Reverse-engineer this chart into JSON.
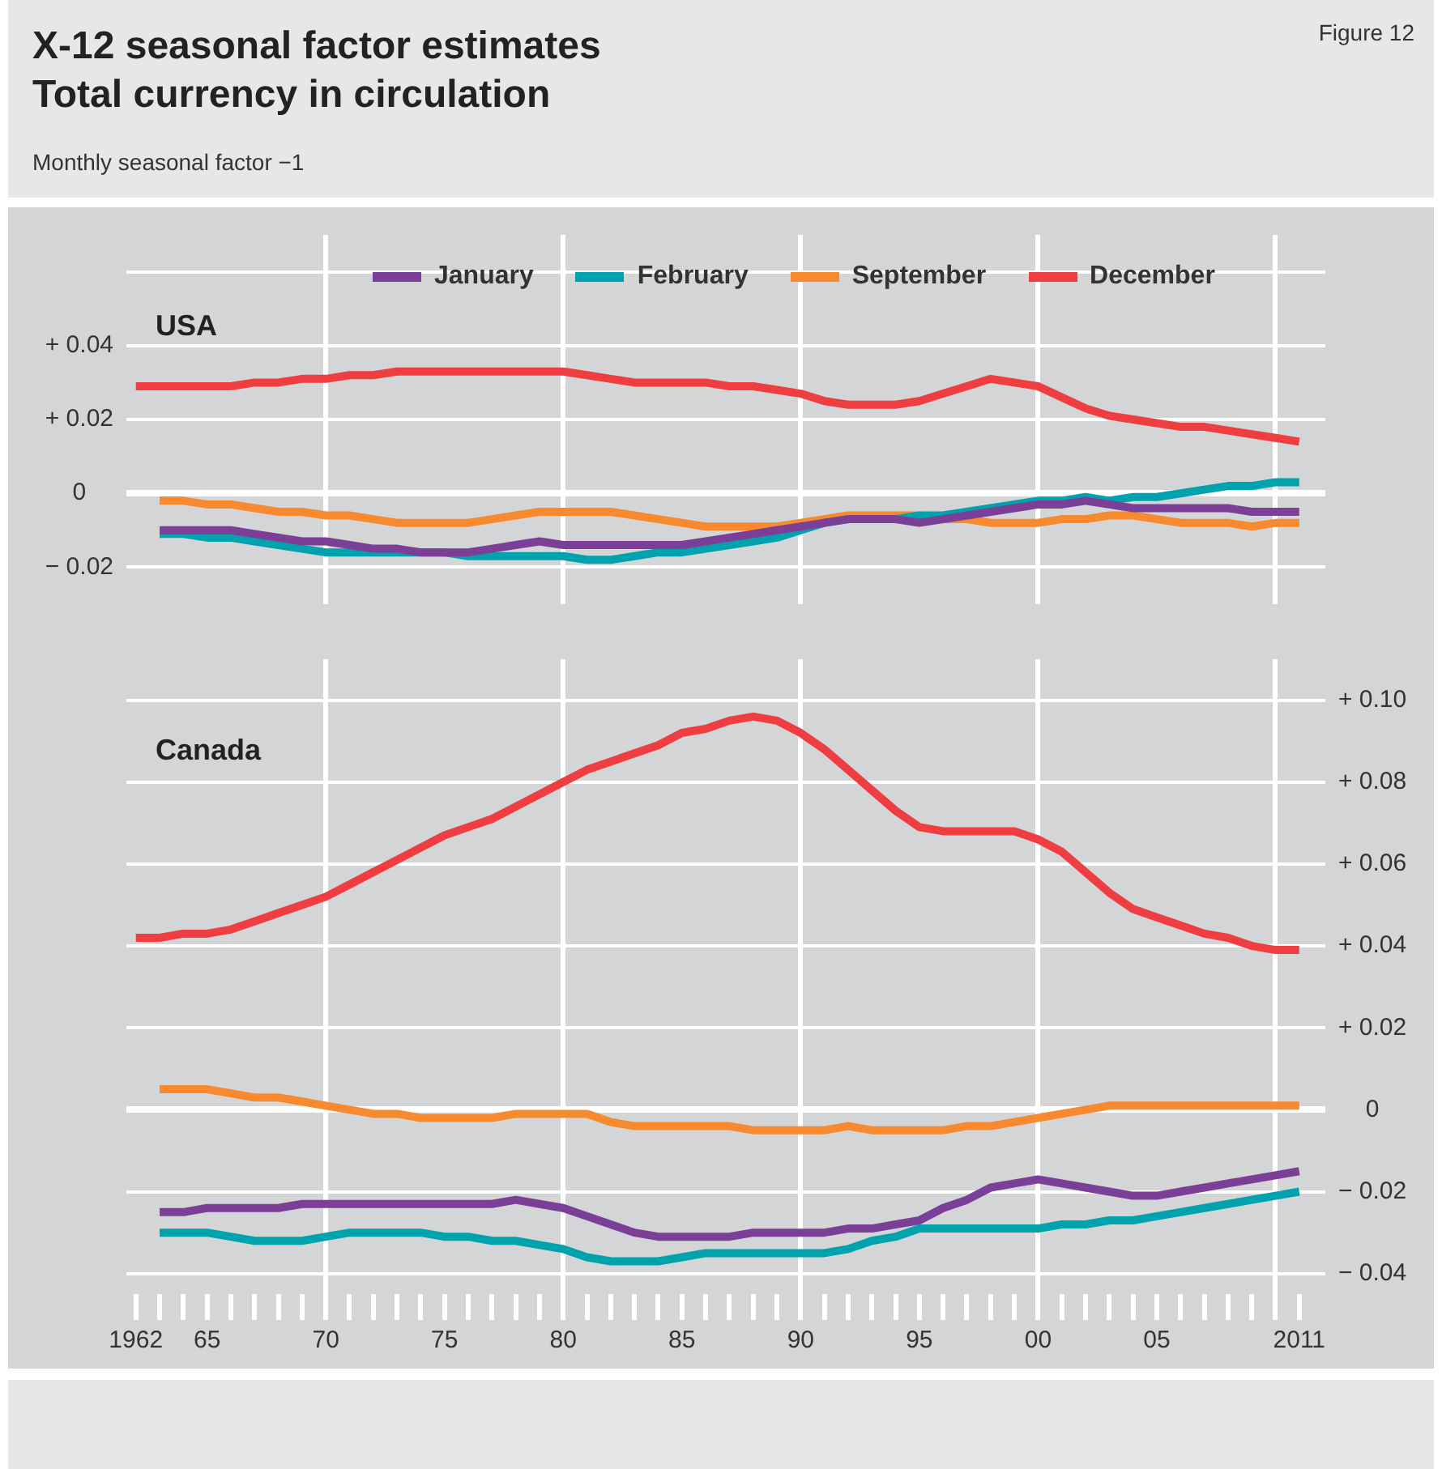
{
  "chart_data": [
    {
      "type": "other",
      "title": "X-12 seasonal factor estimates",
      "subtitle": "Total currency in circulation",
      "annotations": [
        "Monthly seasonal factor −1",
        "Figure 12"
      ]
    },
    {
      "type": "line",
      "title": "USA",
      "legend": "top",
      "marker": "none",
      "line_style": "solid",
      "grid": true,
      "tick_labels": "y",
      "x": [
        1962,
        1963,
        1964,
        1965,
        1966,
        1967,
        1968,
        1969,
        1970,
        1971,
        1972,
        1973,
        1974,
        1975,
        1976,
        1977,
        1978,
        1979,
        1980,
        1981,
        1982,
        1983,
        1984,
        1985,
        1986,
        1987,
        1988,
        1989,
        1990,
        1991,
        1992,
        1993,
        1994,
        1995,
        1996,
        1997,
        1998,
        1999,
        2000,
        2001,
        2002,
        2003,
        2004,
        2005,
        2006,
        2007,
        2008,
        2009,
        2010,
        2011
      ],
      "xlim": [
        1961.6,
        2012.1
      ],
      "xticks": [
        1970,
        1980,
        1990,
        2000,
        2010
      ],
      "ylim": [
        -0.03,
        0.07
      ],
      "yticks": [
        {
          "value": 0.06,
          "label": null
        },
        {
          "value": 0.04,
          "label": "+ 0.04"
        },
        {
          "value": 0.02,
          "label": "+ 0.02"
        },
        0,
        {
          "value": -0.02,
          "label": "− 0.02"
        }
      ],
      "series": [
        {
          "name": "January",
          "color": "#7b3f98",
          "values": [
            null,
            -0.01,
            -0.01,
            -0.01,
            -0.01,
            -0.011,
            -0.012,
            -0.013,
            -0.013,
            -0.014,
            -0.015,
            -0.015,
            -0.016,
            -0.016,
            -0.016,
            -0.015,
            -0.014,
            -0.013,
            -0.014,
            -0.014,
            -0.014,
            -0.014,
            -0.014,
            -0.014,
            -0.013,
            -0.012,
            -0.011,
            -0.01,
            -0.009,
            -0.008,
            -0.007,
            -0.007,
            -0.007,
            -0.008,
            -0.007,
            -0.006,
            -0.005,
            -0.004,
            -0.003,
            -0.003,
            -0.002,
            -0.003,
            -0.004,
            -0.004,
            -0.004,
            -0.004,
            -0.004,
            -0.005,
            -0.005,
            -0.005
          ]
        },
        {
          "name": "February",
          "color": "#00a3ad",
          "values": [
            null,
            -0.011,
            -0.011,
            -0.012,
            -0.012,
            -0.013,
            -0.014,
            -0.015,
            -0.016,
            -0.016,
            -0.016,
            -0.016,
            -0.016,
            -0.016,
            -0.017,
            -0.017,
            -0.017,
            -0.017,
            -0.017,
            -0.018,
            -0.018,
            -0.017,
            -0.016,
            -0.016,
            -0.015,
            -0.014,
            -0.013,
            -0.012,
            -0.01,
            -0.008,
            -0.007,
            null,
            -0.007,
            -0.006,
            -0.006,
            -0.005,
            -0.004,
            -0.003,
            -0.002,
            -0.002,
            -0.001,
            -0.002,
            -0.001,
            -0.001,
            0,
            0.001,
            0.002,
            0.002,
            0.003,
            0.003
          ]
        },
        {
          "name": "September",
          "color": "#f7892e",
          "values": [
            null,
            -0.002,
            -0.002,
            -0.003,
            -0.003,
            -0.004,
            -0.005,
            -0.005,
            -0.006,
            -0.006,
            -0.007,
            -0.008,
            -0.008,
            -0.008,
            -0.008,
            -0.007,
            -0.006,
            -0.005,
            -0.005,
            -0.005,
            -0.005,
            -0.006,
            -0.007,
            -0.008,
            -0.009,
            -0.009,
            -0.009,
            -0.009,
            -0.008,
            -0.007,
            -0.006,
            -0.006,
            -0.006,
            -0.006,
            -0.007,
            -0.007,
            -0.008,
            -0.008,
            -0.008,
            -0.007,
            -0.007,
            -0.006,
            -0.006,
            -0.007,
            -0.008,
            -0.008,
            -0.008,
            -0.009,
            -0.008,
            -0.008
          ]
        },
        {
          "name": "December",
          "color": "#ef3e42",
          "values": [
            0.029,
            0.029,
            0.029,
            0.029,
            0.029,
            0.03,
            0.03,
            0.031,
            0.031,
            0.032,
            0.032,
            0.033,
            0.033,
            0.033,
            0.033,
            0.033,
            0.033,
            0.033,
            0.033,
            0.032,
            0.031,
            0.03,
            0.03,
            0.03,
            0.03,
            0.029,
            0.029,
            0.028,
            0.027,
            0.025,
            0.024,
            0.024,
            0.024,
            0.025,
            0.027,
            0.029,
            0.031,
            0.03,
            0.029,
            0.026,
            0.023,
            0.021,
            0.02,
            0.019,
            0.018,
            0.018,
            0.017,
            0.016,
            0.015,
            0.014
          ]
        }
      ]
    },
    {
      "type": "line",
      "title": "Canada",
      "marker": "none",
      "line_style": "solid",
      "grid": true,
      "x": [
        1962,
        1963,
        1964,
        1965,
        1966,
        1967,
        1968,
        1969,
        1970,
        1971,
        1972,
        1973,
        1974,
        1975,
        1976,
        1977,
        1978,
        1979,
        1980,
        1981,
        1982,
        1983,
        1984,
        1985,
        1986,
        1987,
        1988,
        1989,
        1990,
        1991,
        1992,
        1993,
        1994,
        1995,
        1996,
        1997,
        1998,
        1999,
        2000,
        2001,
        2002,
        2003,
        2004,
        2005,
        2006,
        2007,
        2008,
        2009,
        2010,
        2011
      ],
      "xlim": [
        1961.6,
        2012.1
      ],
      "xticks": [
        1962,
        {
          "value": 1963,
          "label": null
        },
        {
          "value": 1964,
          "label": null
        },
        {
          "value": 1965,
          "label": "65"
        },
        {
          "value": 1966,
          "label": null
        },
        {
          "value": 1967,
          "label": null
        },
        {
          "value": 1968,
          "label": null
        },
        {
          "value": 1969,
          "label": null
        },
        {
          "value": 1970,
          "label": "70"
        },
        {
          "value": 1971,
          "label": null
        },
        {
          "value": 1972,
          "label": null
        },
        {
          "value": 1973,
          "label": null
        },
        {
          "value": 1974,
          "label": null
        },
        {
          "value": 1975,
          "label": "75"
        },
        {
          "value": 1976,
          "label": null
        },
        {
          "value": 1977,
          "label": null
        },
        {
          "value": 1978,
          "label": null
        },
        {
          "value": 1979,
          "label": null
        },
        {
          "value": 1980,
          "label": "80"
        },
        {
          "value": 1981,
          "label": null
        },
        {
          "value": 1982,
          "label": null
        },
        {
          "value": 1983,
          "label": null
        },
        {
          "value": 1984,
          "label": null
        },
        {
          "value": 1985,
          "label": "85"
        },
        {
          "value": 1986,
          "label": null
        },
        {
          "value": 1987,
          "label": null
        },
        {
          "value": 1988,
          "label": null
        },
        {
          "value": 1989,
          "label": null
        },
        {
          "value": 1990,
          "label": "90"
        },
        {
          "value": 1991,
          "label": null
        },
        {
          "value": 1992,
          "label": null
        },
        {
          "value": 1993,
          "label": null
        },
        {
          "value": 1994,
          "label": null
        },
        {
          "value": 1995,
          "label": "95"
        },
        {
          "value": 1996,
          "label": null
        },
        {
          "value": 1997,
          "label": null
        },
        {
          "value": 1998,
          "label": null
        },
        {
          "value": 1999,
          "label": null
        },
        {
          "value": 2000,
          "label": "00"
        },
        {
          "value": 2001,
          "label": null
        },
        {
          "value": 2002,
          "label": null
        },
        {
          "value": 2003,
          "label": null
        },
        {
          "value": 2004,
          "label": null
        },
        {
          "value": 2005,
          "label": "05"
        },
        {
          "value": 2006,
          "label": null
        },
        {
          "value": 2007,
          "label": null
        },
        {
          "value": 2008,
          "label": null
        },
        {
          "value": 2009,
          "label": null
        },
        {
          "value": 2010,
          "label": null
        },
        2011
      ],
      "ylim": [
        -0.045,
        0.11
      ],
      "yticks": [
        {
          "value": 0.1,
          "label": "+ 0.10"
        },
        {
          "value": 0.08,
          "label": "+ 0.08"
        },
        {
          "value": 0.06,
          "label": "+ 0.06"
        },
        {
          "value": 0.04,
          "label": "+ 0.04"
        },
        {
          "value": 0.02,
          "label": "+ 0.02"
        },
        0,
        {
          "value": -0.02,
          "label": "− 0.02"
        },
        {
          "value": -0.04,
          "label": "− 0.04"
        }
      ],
      "series": [
        {
          "color": "#7b3f98",
          "values": [
            null,
            -0.025,
            -0.025,
            -0.024,
            -0.024,
            -0.024,
            -0.024,
            -0.023,
            -0.023,
            -0.023,
            -0.023,
            -0.023,
            -0.023,
            -0.023,
            -0.023,
            -0.023,
            -0.022,
            -0.023,
            -0.024,
            -0.026,
            -0.028,
            -0.03,
            -0.031,
            -0.031,
            -0.031,
            -0.031,
            -0.03,
            -0.03,
            -0.03,
            -0.03,
            -0.029,
            -0.029,
            -0.028,
            -0.027,
            -0.024,
            -0.022,
            -0.019,
            -0.018,
            -0.017,
            -0.018,
            -0.019,
            -0.02,
            -0.021,
            -0.021,
            -0.02,
            -0.019,
            -0.018,
            -0.017,
            -0.016,
            -0.015
          ]
        },
        {
          "color": "#00a3ad",
          "values": [
            null,
            -0.03,
            -0.03,
            -0.03,
            -0.031,
            -0.032,
            -0.032,
            -0.032,
            -0.031,
            -0.03,
            -0.03,
            -0.03,
            -0.03,
            -0.031,
            -0.031,
            -0.032,
            -0.032,
            -0.033,
            -0.034,
            -0.036,
            -0.037,
            -0.037,
            -0.037,
            -0.036,
            -0.035,
            -0.035,
            -0.035,
            -0.035,
            -0.035,
            -0.035,
            -0.034,
            -0.032,
            -0.031,
            -0.029,
            -0.029,
            -0.029,
            -0.029,
            -0.029,
            -0.029,
            -0.028,
            -0.028,
            -0.027,
            -0.027,
            -0.026,
            -0.025,
            -0.024,
            -0.023,
            -0.022,
            -0.021,
            -0.02
          ]
        },
        {
          "color": "#f7892e",
          "values": [
            null,
            0.005,
            0.005,
            0.005,
            0.004,
            0.003,
            0.003,
            0.002,
            0.001,
            0,
            -0.001,
            -0.001,
            -0.002,
            -0.002,
            -0.002,
            -0.002,
            -0.001,
            -0.001,
            -0.001,
            -0.001,
            -0.003,
            -0.004,
            -0.004,
            -0.004,
            -0.004,
            -0.004,
            -0.005,
            -0.005,
            -0.005,
            -0.005,
            -0.004,
            -0.005,
            -0.005,
            -0.005,
            -0.005,
            -0.004,
            -0.004,
            -0.003,
            -0.002,
            -0.001,
            0,
            0.001,
            0.001,
            0.001,
            0.001,
            0.001,
            0.001,
            0.001,
            0.001,
            0.001
          ]
        },
        {
          "color": "#ef3e42",
          "values": [
            0.042,
            0.042,
            0.043,
            0.043,
            0.044,
            0.046,
            0.048,
            0.05,
            0.052,
            0.055,
            0.058,
            0.061,
            0.064,
            0.067,
            0.069,
            0.071,
            0.074,
            0.077,
            0.08,
            0.083,
            0.085,
            0.087,
            0.089,
            0.092,
            0.093,
            0.095,
            0.096,
            0.095,
            0.092,
            0.088,
            0.083,
            0.078,
            0.073,
            0.069,
            0.068,
            0.068,
            0.068,
            0.068,
            0.066,
            0.063,
            0.058,
            0.053,
            0.049,
            0.047,
            0.045,
            0.043,
            0.042,
            0.04,
            0.039,
            0.039
          ]
        }
      ]
    }
  ]
}
